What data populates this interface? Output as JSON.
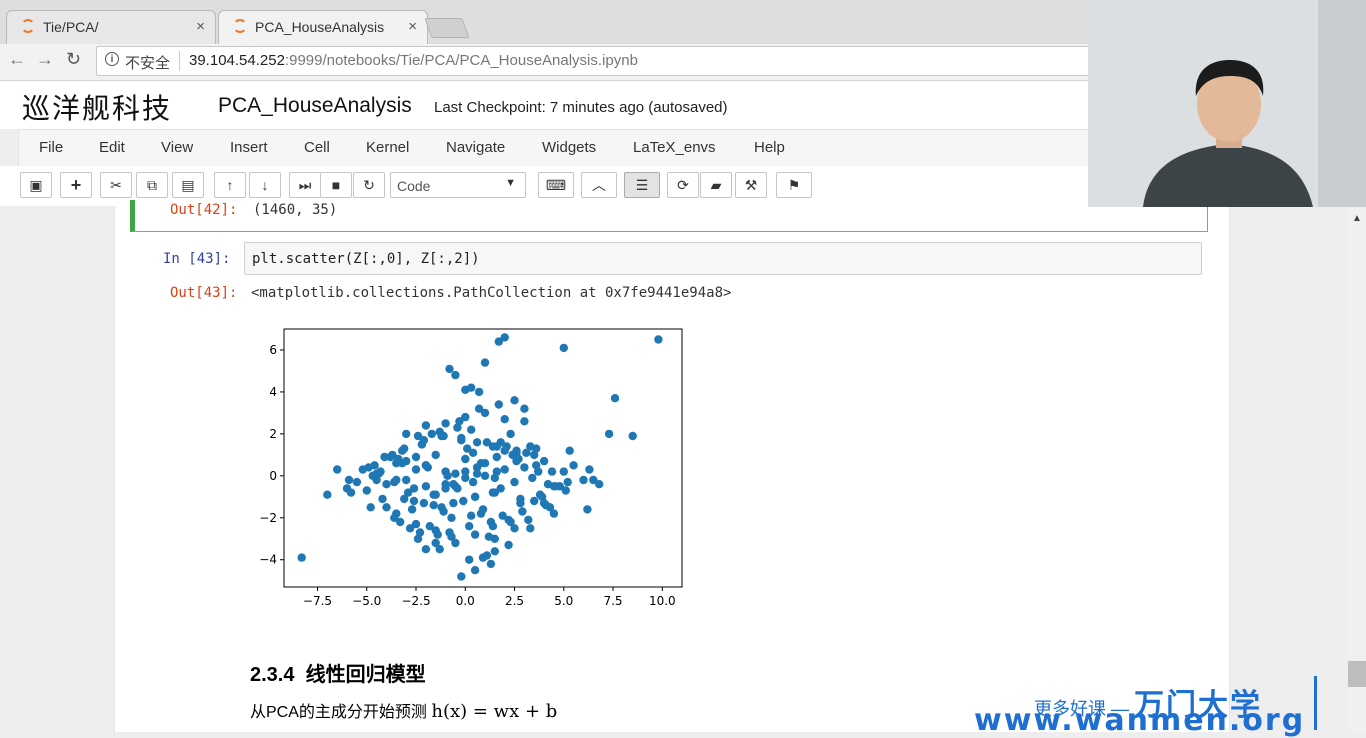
{
  "browser": {
    "tabs": [
      {
        "label": "Tie/PCA/",
        "close": "×",
        "active": false
      },
      {
        "label": "PCA_HouseAnalysis",
        "close": "×",
        "active": true
      }
    ],
    "security_label": "不安全",
    "url_host": "39.104.54.252",
    "url_rest": ":9999/notebooks/Tie/PCA/PCA_HouseAnalysis.ipynb"
  },
  "jupyter": {
    "logo_text": "巡洋舰科技",
    "notebook_name": "PCA_HouseAnalysis",
    "checkpoint": "Last Checkpoint: 7 minutes ago (autosaved)",
    "menu": [
      "File",
      "Edit",
      "View",
      "Insert",
      "Cell",
      "Kernel",
      "Navigate",
      "Widgets",
      "LaTeX_envs",
      "Help"
    ],
    "cell_type": "Code"
  },
  "cells": {
    "prev_out_prompt": "Out[42]:",
    "prev_out_text": "(1460, 35)",
    "in_prompt": "In  [43]:",
    "in_code": "plt.scatter(Z[:,0], Z[:,2])",
    "out_prompt": "Out[43]:",
    "out_text": "<matplotlib.collections.PathCollection at 0x7fe9441e94a8>"
  },
  "chart_data": {
    "type": "scatter",
    "title": "",
    "xlabel": "",
    "ylabel": "",
    "xlim": [
      -9.2,
      11.0
    ],
    "ylim": [
      -5.3,
      7.0
    ],
    "x_ticks": [
      "−7.5",
      "−5.0",
      "−2.5",
      "0.0",
      "2.5",
      "5.0",
      "7.5",
      "10.0"
    ],
    "x_tick_values": [
      -7.5,
      -5.0,
      -2.5,
      0.0,
      2.5,
      5.0,
      7.5,
      10.0
    ],
    "y_ticks": [
      "−4",
      "−2",
      "0",
      "2",
      "4",
      "6"
    ],
    "y_tick_values": [
      -4,
      -2,
      0,
      2,
      4,
      6
    ],
    "color": "#1f77b4",
    "series": [
      {
        "x": [
          -2.0,
          -1.5,
          -1.0,
          -0.5,
          0.0,
          0.5,
          1.0,
          1.5,
          2.0,
          -2.5,
          -3.0,
          -3.5,
          -4.0,
          -4.5,
          -5.0,
          2.5,
          3.0,
          3.5,
          4.0,
          4.5,
          5.0,
          -2.2,
          -1.2,
          -0.2,
          0.8,
          1.8,
          2.8,
          -3.2,
          -4.2,
          3.8,
          -1.7,
          -0.7,
          0.3,
          1.3,
          2.3,
          -2.7,
          -3.7,
          3.3,
          4.3,
          -5.5,
          -6.0,
          5.5,
          6.0,
          0.0,
          -1.0,
          1.0,
          2.0,
          -2.0,
          3.0,
          -3.0,
          -1.5,
          0.5,
          1.5,
          -0.5,
          2.5,
          -2.5,
          0.2,
          -0.8,
          1.2,
          -1.8,
          2.2,
          -2.8,
          0.7,
          -1.3,
          1.7,
          -0.3,
          0.9,
          -1.1,
          1.9,
          -2.1,
          2.9,
          -3.1,
          3.9,
          -4.1,
          0.4,
          -0.6,
          1.4,
          -1.6,
          2.4,
          -2.6,
          -5.8,
          -6.5,
          -7.0,
          -4.8,
          -4.6,
          4.8,
          5.3,
          6.2,
          6.8,
          7.6,
          8.5,
          7.3,
          6.5,
          -8.3,
          1.7,
          2.0,
          5.0,
          9.8,
          -0.8,
          0.0,
          0.3,
          0.7,
          -0.5,
          1.0,
          2.5,
          3.0,
          1.5,
          -3.5,
          -2.0,
          0.2,
          -0.2,
          0.5,
          -1.5,
          1.3,
          -2.3,
          3.3,
          -3.3,
          4.0,
          -4.0,
          0.0,
          0.6,
          -0.6,
          1.6,
          -1.6,
          2.6,
          -2.6,
          3.6,
          -3.6,
          4.4,
          -4.4,
          5.2,
          -5.2,
          0.1,
          -0.1,
          1.1,
          -1.1,
          2.1,
          -2.1,
          3.1,
          -3.1,
          0.8,
          -0.9,
          1.8,
          -1.9,
          2.7,
          -2.9,
          3.7,
          -3.8,
          4.6,
          -4.7,
          0.3,
          -0.4,
          1.4,
          -1.3,
          2.3,
          -2.4,
          3.4,
          -3.2,
          4.2,
          -4.3,
          -0.2,
          0.6,
          -1.2,
          1.6,
          -2.2,
          2.6,
          -3.4,
          3.5,
          -4.5,
          4.5,
          1.1,
          0.9,
          -0.7,
          2.2,
          -1.4,
          3.2,
          -2.4,
          4.1,
          -3.6,
          5.1,
          -4.9,
          6.3,
          -5.9,
          0.5,
          1.6,
          -1.0,
          2.6,
          -2.0,
          3.6,
          -3.0,
          0.0,
          -0.5,
          0.4,
          1.0,
          1.5,
          2.0,
          -1.5,
          -2.5,
          -3.5,
          2.8,
          -2.0,
          -1.0,
          0.6,
          1.4,
          -0.4
        ],
        "y": [
          0.5,
          1.0,
          0.2,
          -0.5,
          0.8,
          -1.0,
          0.0,
          -0.8,
          1.2,
          0.3,
          -0.2,
          0.6,
          -0.4,
          0.1,
          -0.7,
          -0.3,
          0.4,
          -1.2,
          0.7,
          -0.5,
          0.2,
          1.5,
          -1.5,
          1.8,
          -1.8,
          1.6,
          -1.3,
          1.2,
          -1.1,
          -0.9,
          2.0,
          -2.0,
          2.2,
          -2.2,
          2.0,
          -1.6,
          1.0,
          1.4,
          -1.5,
          -0.3,
          -0.6,
          0.5,
          -0.2,
          2.8,
          2.5,
          3.0,
          2.7,
          2.4,
          2.6,
          2.0,
          -2.6,
          -2.8,
          -3.0,
          -3.2,
          -2.5,
          -2.3,
          -2.4,
          -2.7,
          -2.9,
          -2.4,
          -2.1,
          -2.5,
          3.2,
          -3.5,
          3.4,
          2.6,
          -1.6,
          1.9,
          -1.9,
          1.7,
          -1.7,
          1.3,
          -1.0,
          0.9,
          1.1,
          -1.3,
          1.4,
          -1.4,
          1.0,
          -1.2,
          -0.8,
          0.3,
          -0.9,
          -1.5,
          0.5,
          -0.5,
          1.2,
          -1.6,
          -0.4,
          3.7,
          1.9,
          2.0,
          -0.2,
          -3.9,
          6.4,
          6.6,
          6.1,
          6.5,
          5.1,
          4.1,
          4.2,
          4.0,
          4.8,
          5.4,
          3.6,
          3.2,
          -3.6,
          -1.8,
          -3.5,
          -4.0,
          -4.8,
          -4.5,
          -3.2,
          -4.2,
          -2.7,
          -2.5,
          -2.2,
          -1.3,
          -1.5,
          -0.1,
          0.4,
          -0.4,
          0.9,
          -0.9,
          0.7,
          -0.6,
          0.5,
          -0.3,
          0.2,
          0.1,
          -0.3,
          0.3,
          1.3,
          -1.2,
          1.6,
          -1.7,
          1.4,
          -1.3,
          1.1,
          -1.1,
          0.6,
          0.0,
          -0.6,
          0.4,
          0.8,
          -0.8,
          0.2,
          0.9,
          -0.5,
          0.0,
          -1.9,
          2.3,
          -2.4,
          2.1,
          -2.2,
          1.9,
          -0.1,
          0.6,
          -0.4,
          0.2,
          1.7,
          1.6,
          1.9,
          1.4,
          1.5,
          1.2,
          0.8,
          1.0,
          -0.2,
          -1.8,
          -3.8,
          -3.9,
          -2.9,
          -3.3,
          -2.8,
          -2.1,
          -3.0,
          -1.4,
          -2.0,
          -0.7,
          0.4,
          0.3,
          -0.2,
          -1.0,
          0.2,
          -0.6,
          1.1,
          -0.5,
          1.3,
          0.7,
          0.2,
          0.1,
          -0.3,
          0.6,
          -0.1,
          0.3,
          -0.9,
          0.9,
          -0.2,
          -1.1,
          0.5,
          -0.4,
          0.1,
          -0.8,
          -0.6
        ]
      }
    ]
  },
  "section": {
    "heading_number": "2.3.4",
    "heading_text": "线性回归模型",
    "para_text": "从PCA的主成分开始预测",
    "para_math": "h(x) = wx + b"
  },
  "watermark": {
    "line1_small": "更多好课 —",
    "line1_big": "万门大学",
    "line2": "www.wanmen.org"
  }
}
